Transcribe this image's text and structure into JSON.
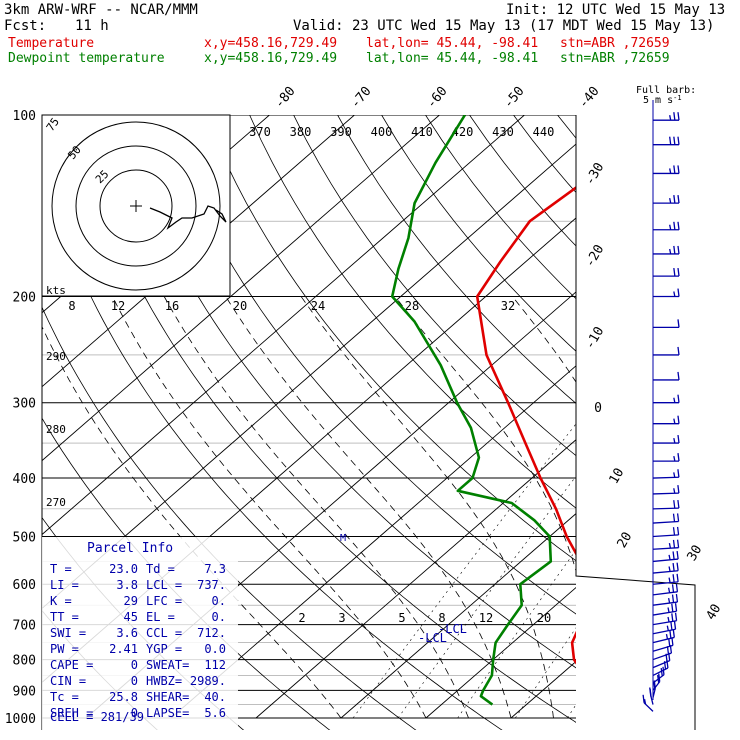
{
  "header": {
    "model": "3km ARW-WRF -- NCAR/MMM",
    "init": "Init: 12 UTC Wed 15 May 13",
    "fcst_label": "Fcst:",
    "fcst_value": "11 h",
    "valid": "Valid: 23 UTC Wed 15 May 13 (17 MDT Wed 15 May 13)",
    "temp_line": {
      "label": "Temperature",
      "xy": "x,y=458.16,729.49",
      "latlon": "lat,lon= 45.44, -98.41",
      "stn": "stn=ABR ,72659"
    },
    "dew_line": {
      "label": "Dewpoint temperature",
      "xy": "x,y=458.16,729.49",
      "latlon": "lat,lon= 45.44, -98.41",
      "stn": "stn=ABR ,72659"
    }
  },
  "barb_legend": {
    "line1": "Full barb:",
    "line2": "5 m s",
    "exp": "-1"
  },
  "parcel_info": {
    "title": "Parcel Info",
    "rows": [
      {
        "l": "T  =",
        "lv": "23.0",
        "r": "Td =",
        "rv": "7.3"
      },
      {
        "l": "LI =",
        "lv": "3.8",
        "r": "LCL =",
        "rv": "737."
      },
      {
        "l": "K  =",
        "lv": "29",
        "r": "LFC =",
        "rv": "0."
      },
      {
        "l": "TT =",
        "lv": "45",
        "r": "EL  =",
        "rv": "0."
      },
      {
        "l": "SWI =",
        "lv": "3.6",
        "r": "CCL =",
        "rv": "712."
      },
      {
        "l": "PW =",
        "lv": "2.41",
        "r": "YGP =",
        "rv": "0.0"
      },
      {
        "l": "CAPE =",
        "lv": "0",
        "r": "SWEAT=",
        "rv": "112"
      },
      {
        "l": "CIN =",
        "lv": "0",
        "r": "HWBZ=",
        "rv": "2989."
      },
      {
        "l": "Tc  =",
        "lv": "25.8",
        "r": "SHEAR=",
        "rv": "40."
      },
      {
        "l": "SREH =",
        "lv": "0",
        "r": "LAPSE=",
        "rv": "5.6"
      }
    ],
    "cell": "CELL = 281/39"
  },
  "hodograph": {
    "ring_labels": [
      "75",
      "50",
      "25"
    ],
    "units": "kts"
  },
  "markers": {
    "lcl_a": "-LCL",
    "lcl_b": "-LCL",
    "m": "M"
  },
  "colors": {
    "temperature": "#e00000",
    "dewpoint": "#008000",
    "barbs": "#0000aa",
    "grid": "#000000"
  },
  "chart_data": {
    "type": "line",
    "title": "",
    "xlabel": "",
    "ylabel": "",
    "y_scale": "log-pressure",
    "ylim": [
      1000,
      100
    ],
    "pressure_ticks": [
      100,
      200,
      300,
      400,
      500,
      600,
      700,
      800,
      900,
      1000
    ],
    "isotherm_labels": [
      "-80",
      "-70",
      "-60",
      "-50",
      "-40",
      "-30",
      "-20",
      "-10",
      "0",
      "10",
      "20",
      "30",
      "40"
    ],
    "theta_labels": [
      "370",
      "380",
      "390",
      "400",
      "410",
      "420",
      "430",
      "440"
    ],
    "theta_left_labels": [
      "290",
      "280",
      "270"
    ],
    "mixing_labels": [
      "8",
      "12",
      "16",
      "20",
      "24",
      "28",
      "32"
    ],
    "mixing_labels_low": [
      "2",
      "3",
      "5",
      "8",
      "12",
      "20"
    ],
    "series": [
      {
        "name": "Temperature",
        "points": [
          [
            1000,
            26.0
          ],
          [
            950,
            22.0
          ],
          [
            900,
            17.5
          ],
          [
            850,
            13.0
          ],
          [
            800,
            9.5
          ],
          [
            750,
            7.0
          ],
          [
            700,
            5.5
          ],
          [
            650,
            3.0
          ],
          [
            600,
            0.5
          ],
          [
            550,
            -3.0
          ],
          [
            500,
            -8.0
          ],
          [
            450,
            -13.0
          ],
          [
            400,
            -19.0
          ],
          [
            350,
            -25.5
          ],
          [
            300,
            -33.0
          ],
          [
            250,
            -42.0
          ],
          [
            200,
            -51.0
          ],
          [
            175,
            -53.0
          ],
          [
            150,
            -55.0
          ],
          [
            130,
            -54.0
          ],
          [
            110,
            -55.5
          ],
          [
            100,
            -56.5
          ]
        ]
      },
      {
        "name": "Dewpoint temperature",
        "points": [
          [
            950,
            6.0
          ],
          [
            920,
            3.5
          ],
          [
            900,
            3.0
          ],
          [
            850,
            2.0
          ],
          [
            800,
            0.0
          ],
          [
            750,
            -2.0
          ],
          [
            700,
            -3.0
          ],
          [
            650,
            -4.0
          ],
          [
            600,
            -7.0
          ],
          [
            550,
            -6.5
          ],
          [
            500,
            -10.0
          ],
          [
            470,
            -14.0
          ],
          [
            440,
            -19.0
          ],
          [
            420,
            -27.0
          ],
          [
            400,
            -27.0
          ],
          [
            370,
            -29.0
          ],
          [
            330,
            -34.0
          ],
          [
            300,
            -39.0
          ],
          [
            260,
            -46.0
          ],
          [
            220,
            -55.0
          ],
          [
            200,
            -61.0
          ],
          [
            180,
            -64.0
          ],
          [
            160,
            -67.0
          ],
          [
            140,
            -71.0
          ],
          [
            120,
            -74.0
          ],
          [
            100,
            -77.0
          ]
        ]
      }
    ],
    "wind_barbs": [
      {
        "p": 975,
        "dir": 160,
        "spd": 15
      },
      {
        "p": 950,
        "dir": 175,
        "spd": 20
      },
      {
        "p": 925,
        "dir": 185,
        "spd": 20
      },
      {
        "p": 900,
        "dir": 195,
        "spd": 20
      },
      {
        "p": 875,
        "dir": 205,
        "spd": 20
      },
      {
        "p": 850,
        "dir": 215,
        "spd": 20
      },
      {
        "p": 825,
        "dir": 220,
        "spd": 20
      },
      {
        "p": 800,
        "dir": 225,
        "spd": 20
      },
      {
        "p": 775,
        "dir": 230,
        "spd": 20
      },
      {
        "p": 750,
        "dir": 235,
        "spd": 25
      },
      {
        "p": 725,
        "dir": 240,
        "spd": 25
      },
      {
        "p": 700,
        "dir": 245,
        "spd": 25
      },
      {
        "p": 675,
        "dir": 245,
        "spd": 25
      },
      {
        "p": 650,
        "dir": 250,
        "spd": 25
      },
      {
        "p": 625,
        "dir": 250,
        "spd": 25
      },
      {
        "p": 600,
        "dir": 255,
        "spd": 25
      },
      {
        "p": 575,
        "dir": 255,
        "spd": 25
      },
      {
        "p": 550,
        "dir": 255,
        "spd": 25
      },
      {
        "p": 525,
        "dir": 260,
        "spd": 25
      },
      {
        "p": 500,
        "dir": 260,
        "spd": 20
      },
      {
        "p": 475,
        "dir": 260,
        "spd": 20
      },
      {
        "p": 450,
        "dir": 265,
        "spd": 20
      },
      {
        "p": 425,
        "dir": 265,
        "spd": 15
      },
      {
        "p": 400,
        "dir": 265,
        "spd": 15
      },
      {
        "p": 375,
        "dir": 270,
        "spd": 15
      },
      {
        "p": 350,
        "dir": 270,
        "spd": 15
      },
      {
        "p": 325,
        "dir": 270,
        "spd": 15
      },
      {
        "p": 300,
        "dir": 270,
        "spd": 15
      },
      {
        "p": 275,
        "dir": 270,
        "spd": 10
      },
      {
        "p": 250,
        "dir": 270,
        "spd": 10
      },
      {
        "p": 225,
        "dir": 270,
        "spd": 10
      },
      {
        "p": 200,
        "dir": 270,
        "spd": 15
      },
      {
        "p": 185,
        "dir": 270,
        "spd": 20
      },
      {
        "p": 170,
        "dir": 270,
        "spd": 25
      },
      {
        "p": 155,
        "dir": 270,
        "spd": 25
      },
      {
        "p": 140,
        "dir": 270,
        "spd": 25
      },
      {
        "p": 125,
        "dir": 270,
        "spd": 25
      },
      {
        "p": 112,
        "dir": 270,
        "spd": 30
      },
      {
        "p": 102,
        "dir": 270,
        "spd": 25
      }
    ]
  }
}
